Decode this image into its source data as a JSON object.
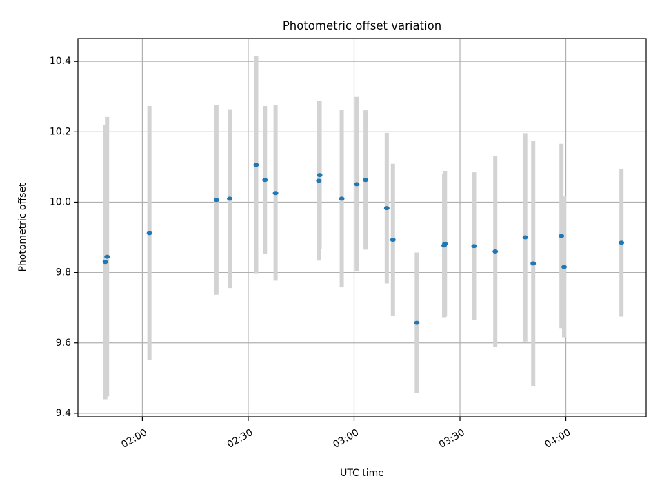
{
  "chart_data": {
    "type": "scatter",
    "title": "Photometric offset variation",
    "xlabel": "UTC time",
    "ylabel": "Photometric offset",
    "xlim": [
      "01:41:45",
      "04:22:45"
    ],
    "ylim": [
      9.39,
      10.465
    ],
    "grid": true,
    "legend": "none",
    "x_ticks": [
      "02:00",
      "02:30",
      "03:00",
      "03:30",
      "04:00"
    ],
    "y_ticks": [
      "9.4",
      "9.6",
      "9.8",
      "10.0",
      "10.2",
      "10.4"
    ],
    "series": [
      {
        "marker_color": "#1f77b4",
        "errorbar_color": "#d3d3d3",
        "points": [
          {
            "time": "01:49:30",
            "y": 9.83,
            "err": 0.39
          },
          {
            "time": "01:50:00",
            "y": 9.845,
            "err": 0.397
          },
          {
            "time": "02:02:00",
            "y": 9.912,
            "err": 0.361
          },
          {
            "time": "02:21:00",
            "y": 10.006,
            "err": 0.269
          },
          {
            "time": "02:24:45",
            "y": 10.01,
            "err": 0.254
          },
          {
            "time": "02:32:15",
            "y": 10.106,
            "err": 0.31
          },
          {
            "time": "02:34:45",
            "y": 10.063,
            "err": 0.21
          },
          {
            "time": "02:37:45",
            "y": 10.026,
            "err": 0.249
          },
          {
            "time": "02:50:00",
            "y": 10.061,
            "err": 0.227
          },
          {
            "time": "02:50:15",
            "y": 10.077,
            "err": 0.21
          },
          {
            "time": "02:56:30",
            "y": 10.01,
            "err": 0.252
          },
          {
            "time": "03:00:45",
            "y": 10.051,
            "err": 0.248
          },
          {
            "time": "03:03:15",
            "y": 10.063,
            "err": 0.198
          },
          {
            "time": "03:09:15",
            "y": 9.983,
            "err": 0.214
          },
          {
            "time": "03:11:00",
            "y": 9.893,
            "err": 0.216
          },
          {
            "time": "03:17:45",
            "y": 9.657,
            "err": 0.2
          },
          {
            "time": "03:25:30",
            "y": 9.877,
            "err": 0.204
          },
          {
            "time": "03:25:45",
            "y": 9.882,
            "err": 0.207
          },
          {
            "time": "03:34:00",
            "y": 9.875,
            "err": 0.21
          },
          {
            "time": "03:40:00",
            "y": 9.86,
            "err": 0.272
          },
          {
            "time": "03:48:30",
            "y": 9.9,
            "err": 0.296
          },
          {
            "time": "03:50:45",
            "y": 9.826,
            "err": 0.348
          },
          {
            "time": "03:58:45",
            "y": 9.904,
            "err": 0.262
          },
          {
            "time": "03:59:30",
            "y": 9.816,
            "err": 0.2
          },
          {
            "time": "04:15:45",
            "y": 9.885,
            "err": 0.21
          }
        ]
      }
    ]
  }
}
